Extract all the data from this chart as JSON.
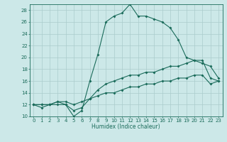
{
  "xlabel": "Humidex (Indice chaleur)",
  "x_values": [
    0,
    1,
    2,
    3,
    4,
    5,
    6,
    7,
    8,
    9,
    10,
    11,
    12,
    13,
    14,
    15,
    16,
    17,
    18,
    19,
    20,
    21,
    22,
    23
  ],
  "line1_y": [
    12,
    11.5,
    12,
    12,
    12,
    10,
    11,
    16,
    20.5,
    26,
    27,
    27.5,
    29,
    27,
    27,
    26.5,
    26,
    25,
    23,
    20,
    19.5,
    19,
    18.5,
    16.5
  ],
  "line2_y": [
    12,
    12,
    12,
    12.5,
    12,
    11,
    11.5,
    13,
    14.5,
    15.5,
    16,
    16.5,
    17,
    17,
    17.5,
    17.5,
    18,
    18.5,
    18.5,
    19,
    19.5,
    19.5,
    16.5,
    16
  ],
  "line3_y": [
    12,
    12,
    12,
    12.5,
    12.5,
    12,
    12.5,
    13,
    13.5,
    14,
    14,
    14.5,
    15,
    15,
    15.5,
    15.5,
    16,
    16,
    16.5,
    16.5,
    17,
    17,
    15.5,
    16
  ],
  "bg_color": "#cce8e8",
  "line_color": "#1a6b5a",
  "grid_color": "#aacccc",
  "ylim": [
    10,
    29
  ],
  "xlim": [
    -0.5,
    23.5
  ],
  "yticks": [
    10,
    12,
    14,
    16,
    18,
    20,
    22,
    24,
    26,
    28
  ],
  "xticks": [
    0,
    1,
    2,
    3,
    4,
    5,
    6,
    7,
    8,
    9,
    10,
    11,
    12,
    13,
    14,
    15,
    16,
    17,
    18,
    19,
    20,
    21,
    22,
    23
  ],
  "xlabel_fontsize": 5.5,
  "tick_fontsize": 5.0,
  "linewidth": 0.8,
  "markersize": 2.0
}
